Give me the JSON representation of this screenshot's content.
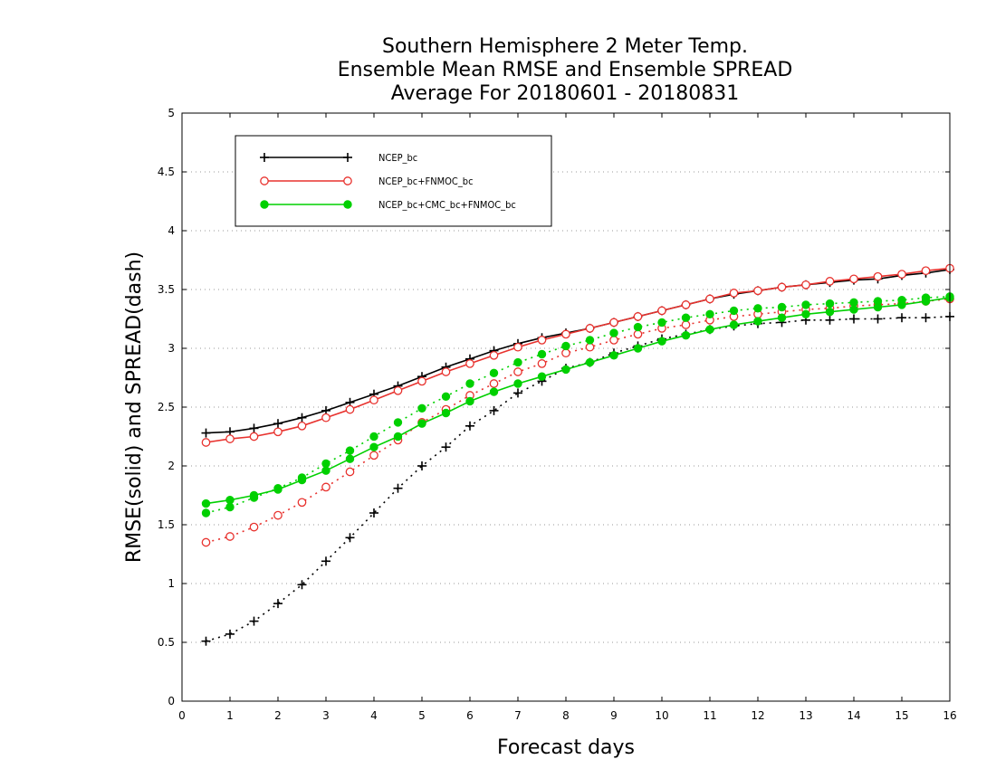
{
  "chart_data": {
    "type": "line",
    "title": [
      "Southern Hemisphere 2 Meter Temp.",
      "Ensemble Mean RMSE and Ensemble SPREAD",
      "Average For 20180601 - 20180831"
    ],
    "xlabel": "Forecast days",
    "ylabel": "RMSE(solid) and SPREAD(dash)",
    "xlim": [
      0,
      16
    ],
    "ylim": [
      0,
      5
    ],
    "xticks": [
      "0",
      "1",
      "2",
      "3",
      "4",
      "5",
      "6",
      "7",
      "8",
      "9",
      "10",
      "11",
      "12",
      "13",
      "14",
      "15",
      "16"
    ],
    "yticks": [
      "0",
      "0.5",
      "1",
      "1.5",
      "2",
      "2.5",
      "3",
      "3.5",
      "4",
      "4.5",
      "5"
    ],
    "grid": "horizontal dotted",
    "legend_position": "top-left",
    "x": [
      0.5,
      1,
      1.5,
      2,
      2.5,
      3,
      3.5,
      4,
      4.5,
      5,
      5.5,
      6,
      6.5,
      7,
      7.5,
      8,
      8.5,
      9,
      9.5,
      10,
      10.5,
      11,
      11.5,
      12,
      12.5,
      13,
      13.5,
      14,
      14.5,
      15,
      15.5,
      16
    ],
    "series": [
      {
        "name": "NCEP_bc",
        "color": "#000000",
        "marker": "plus",
        "rmse": [
          2.28,
          2.29,
          2.32,
          2.36,
          2.41,
          2.47,
          2.54,
          2.61,
          2.68,
          2.76,
          2.84,
          2.91,
          2.98,
          3.04,
          3.09,
          3.13,
          3.17,
          3.22,
          3.27,
          3.32,
          3.37,
          3.42,
          3.46,
          3.49,
          3.52,
          3.54,
          3.56,
          3.58,
          3.59,
          3.62,
          3.64,
          3.67
        ],
        "spread": [
          0.51,
          0.57,
          0.68,
          0.83,
          0.99,
          1.19,
          1.39,
          1.6,
          1.81,
          2.0,
          2.16,
          2.34,
          2.47,
          2.62,
          2.72,
          2.83,
          2.88,
          2.96,
          3.02,
          3.08,
          3.12,
          3.16,
          3.19,
          3.21,
          3.22,
          3.24,
          3.24,
          3.25,
          3.25,
          3.26,
          3.26,
          3.27
        ]
      },
      {
        "name": "NCEP_bc+FNMOC_bc",
        "color": "#e8322e",
        "marker": "open-circle",
        "rmse": [
          2.2,
          2.23,
          2.25,
          2.29,
          2.34,
          2.41,
          2.48,
          2.56,
          2.64,
          2.72,
          2.8,
          2.87,
          2.94,
          3.01,
          3.07,
          3.12,
          3.17,
          3.22,
          3.27,
          3.32,
          3.37,
          3.42,
          3.47,
          3.49,
          3.52,
          3.54,
          3.57,
          3.59,
          3.61,
          3.63,
          3.66,
          3.68
        ],
        "spread": [
          1.35,
          1.4,
          1.48,
          1.58,
          1.69,
          1.82,
          1.95,
          2.09,
          2.22,
          2.37,
          2.48,
          2.6,
          2.7,
          2.8,
          2.87,
          2.96,
          3.01,
          3.07,
          3.12,
          3.17,
          3.2,
          3.24,
          3.27,
          3.29,
          3.31,
          3.33,
          3.34,
          3.36,
          3.37,
          3.38,
          3.4,
          3.42
        ]
      },
      {
        "name": "NCEP_bc+CMC_bc+FNMOC_bc",
        "color": "#00d000",
        "marker": "filled-circle",
        "rmse": [
          1.68,
          1.71,
          1.75,
          1.8,
          1.88,
          1.96,
          2.06,
          2.16,
          2.25,
          2.36,
          2.45,
          2.55,
          2.63,
          2.7,
          2.76,
          2.82,
          2.88,
          2.94,
          3.0,
          3.06,
          3.11,
          3.16,
          3.2,
          3.23,
          3.26,
          3.29,
          3.31,
          3.33,
          3.35,
          3.37,
          3.4,
          3.43
        ],
        "spread": [
          1.6,
          1.65,
          1.73,
          1.81,
          1.9,
          2.02,
          2.13,
          2.25,
          2.37,
          2.49,
          2.59,
          2.7,
          2.79,
          2.88,
          2.95,
          3.02,
          3.07,
          3.13,
          3.18,
          3.22,
          3.26,
          3.29,
          3.32,
          3.34,
          3.35,
          3.37,
          3.38,
          3.39,
          3.4,
          3.41,
          3.43,
          3.44
        ]
      }
    ]
  }
}
